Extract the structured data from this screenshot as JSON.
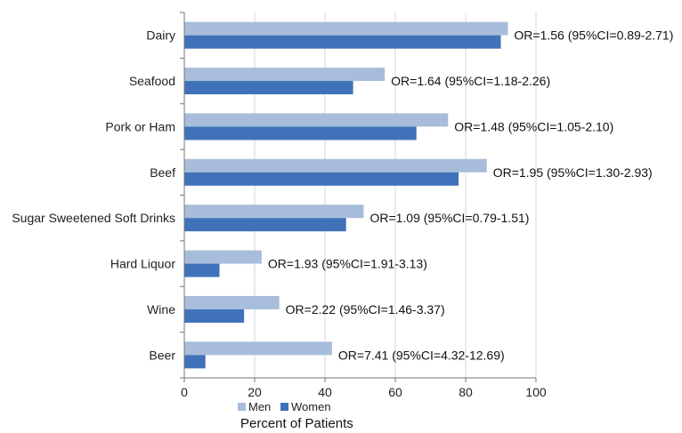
{
  "chart_data": {
    "type": "bar",
    "orientation": "horizontal",
    "categories": [
      "Dairy",
      "Seafood",
      "Pork or Ham",
      "Beef",
      "Sugar Sweetened Soft Drinks",
      "Hard Liquor",
      "Wine",
      "Beer"
    ],
    "series": [
      {
        "name": "Men",
        "color": "#a7bddb",
        "values": [
          92,
          57,
          75,
          86,
          51,
          22,
          27,
          42
        ]
      },
      {
        "name": "Women",
        "color": "#3f72b8",
        "values": [
          90,
          48,
          66,
          78,
          46,
          10,
          17,
          6
        ]
      }
    ],
    "annotations": [
      "OR=1.56 (95%CI=0.89-2.71)",
      "OR=1.64 (95%CI=1.18-2.26)",
      "OR=1.48 (95%CI=1.05-2.10)",
      "OR=1.95 (95%CI=1.30-2.93)",
      "OR=1.09 (95%CI=0.79-1.51)",
      "OR=1.93 (95%CI=1.91-3.13)",
      "OR=2.22 (95%CI=1.46-3.37)",
      "OR=7.41 (95%CI=4.32-12.69)"
    ],
    "xlabel": "Percent of Patients",
    "ylabel": "",
    "title": "",
    "xlim": [
      0,
      100
    ],
    "xticks": [
      0,
      20,
      40,
      60,
      80,
      100
    ],
    "grid": true,
    "legend_position": "bottom"
  }
}
